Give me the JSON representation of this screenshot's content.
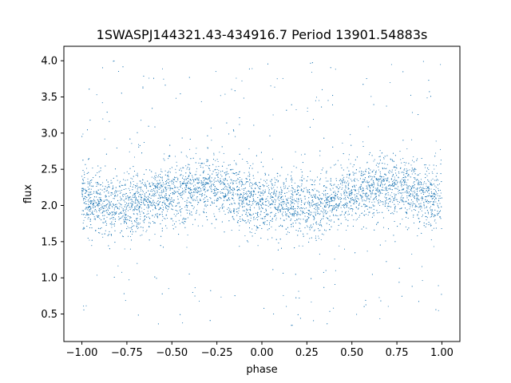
{
  "chart_data": {
    "type": "scatter",
    "title": "1SWASPJ144321.43-434916.7 Period 13901.54883s",
    "xlabel": "phase",
    "ylabel": "flux",
    "xlim": [
      -1.1,
      1.1
    ],
    "ylim": [
      0.12,
      4.2
    ],
    "x_ticks": [
      -1.0,
      -0.75,
      -0.5,
      -0.25,
      0.0,
      0.25,
      0.5,
      0.75,
      1.0
    ],
    "x_tick_labels": [
      "−1.00",
      "−0.75",
      "−0.50",
      "−0.25",
      "0.00",
      "0.25",
      "0.50",
      "0.75",
      "1.00"
    ],
    "y_ticks": [
      0.5,
      1.0,
      1.5,
      2.0,
      2.5,
      3.0,
      3.5,
      4.0
    ],
    "y_tick_labels": [
      "0.5",
      "1.0",
      "1.5",
      "2.0",
      "2.5",
      "3.0",
      "3.5",
      "4.0"
    ],
    "grid": false,
    "marker_color": "#1f77b4",
    "series": [
      {
        "phase_range": [
          -1.0,
          1.0
        ],
        "flux_trend": [
          {
            "phase": -1.0,
            "flux": 2.05
          },
          {
            "phase": -0.75,
            "flux": 2.0
          },
          {
            "phase": -0.5,
            "flux": 2.15
          },
          {
            "phase": -0.3,
            "flux": 2.28
          },
          {
            "phase": 0.0,
            "flux": 2.05
          },
          {
            "phase": 0.25,
            "flux": 1.98
          },
          {
            "phase": 0.5,
            "flux": 2.15
          },
          {
            "phase": 0.7,
            "flux": 2.28
          },
          {
            "phase": 1.0,
            "flux": 2.05
          }
        ],
        "core_flux_band": [
          1.6,
          2.55
        ],
        "outlier_flux_range": [
          0.3,
          4.0
        ]
      }
    ]
  }
}
